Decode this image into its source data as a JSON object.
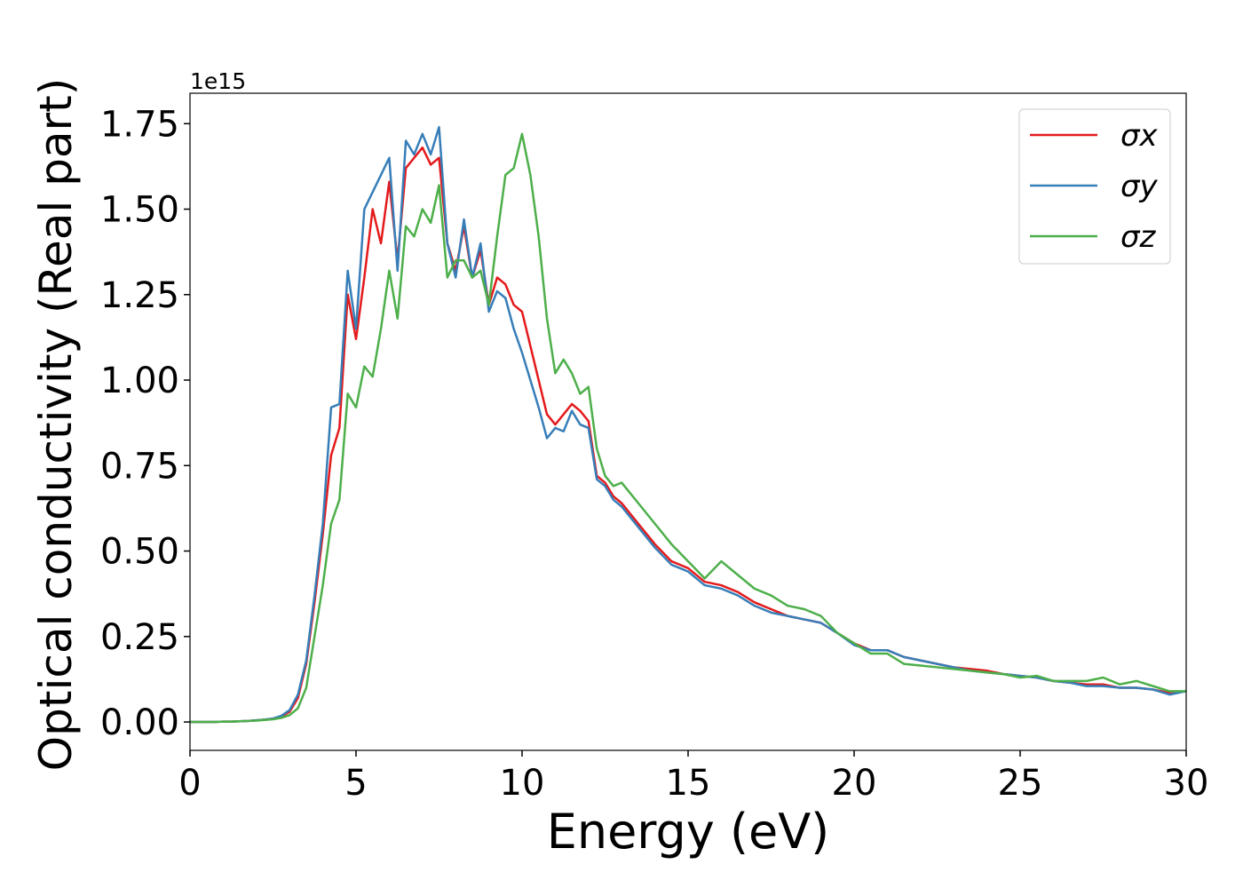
{
  "chart_data": {
    "type": "line",
    "offset_label": "1e15",
    "x_label": "Energy (eV)",
    "y_label": "Optical conductivity (Real part)",
    "xlim": [
      0,
      30
    ],
    "xticks": [
      0,
      5,
      10,
      15,
      20,
      25,
      30
    ],
    "ylim": [
      -0.083,
      1.839
    ],
    "yticks": [
      {
        "value": 0,
        "label": "0.00"
      },
      0.25,
      {
        "value": 0.5,
        "label": "0.50"
      },
      0.75,
      {
        "value": 1,
        "label": "1.00"
      },
      1.25,
      {
        "value": 1.5,
        "label": "1.50"
      },
      1.75
    ],
    "grid": false,
    "legend": "upper right",
    "x": [
      0,
      0.25,
      0.5,
      0.75,
      1,
      1.25,
      1.5,
      1.75,
      2,
      2.25,
      2.5,
      2.75,
      3,
      3.25,
      3.5,
      3.75,
      4,
      4.25,
      4.5,
      4.75,
      5,
      5.25,
      5.5,
      5.75,
      6,
      6.25,
      6.5,
      6.75,
      7,
      7.25,
      7.5,
      7.75,
      8,
      8.25,
      8.5,
      8.75,
      9,
      9.25,
      9.5,
      9.75,
      10,
      10.25,
      10.5,
      10.75,
      11,
      11.25,
      11.5,
      11.75,
      12,
      12.25,
      12.5,
      12.75,
      13,
      13.5,
      14,
      14.5,
      15,
      15.5,
      16,
      16.5,
      17,
      17.5,
      18,
      18.5,
      19,
      19.5,
      20,
      20.5,
      21,
      21.5,
      22,
      22.5,
      23,
      23.5,
      24,
      24.5,
      25,
      25.5,
      26,
      26.5,
      27,
      27.5,
      28,
      28.5,
      29,
      29.5,
      30
    ],
    "series": [
      {
        "name": "σx",
        "color": "#e41a1c",
        "values": [
          0,
          0,
          0,
          0,
          0.001,
          0.001,
          0.002,
          0.003,
          0.005,
          0.007,
          0.01,
          0.016,
          0.03,
          0.07,
          0.17,
          0.35,
          0.55,
          0.78,
          0.86,
          1.25,
          1.12,
          1.3,
          1.5,
          1.4,
          1.58,
          1.35,
          1.62,
          1.65,
          1.68,
          1.63,
          1.65,
          1.4,
          1.32,
          1.45,
          1.3,
          1.38,
          1.22,
          1.3,
          1.28,
          1.22,
          1.2,
          1.1,
          1.0,
          0.9,
          0.87,
          0.9,
          0.93,
          0.91,
          0.88,
          0.72,
          0.7,
          0.66,
          0.64,
          0.58,
          0.52,
          0.47,
          0.45,
          0.41,
          0.4,
          0.38,
          0.35,
          0.33,
          0.31,
          0.3,
          0.29,
          0.26,
          0.23,
          0.21,
          0.21,
          0.19,
          0.18,
          0.17,
          0.16,
          0.155,
          0.15,
          0.14,
          0.135,
          0.13,
          0.12,
          0.115,
          0.11,
          0.11,
          0.1,
          0.1,
          0.095,
          0.085,
          0.09
        ]
      },
      {
        "name": "σy",
        "color": "#377eb8",
        "values": [
          0,
          0,
          0,
          0,
          0.001,
          0.001,
          0.002,
          0.003,
          0.005,
          0.007,
          0.01,
          0.018,
          0.035,
          0.08,
          0.18,
          0.37,
          0.58,
          0.92,
          0.93,
          1.32,
          1.15,
          1.5,
          1.55,
          1.6,
          1.65,
          1.32,
          1.7,
          1.66,
          1.72,
          1.66,
          1.74,
          1.4,
          1.3,
          1.47,
          1.3,
          1.4,
          1.2,
          1.26,
          1.24,
          1.15,
          1.08,
          1.0,
          0.92,
          0.83,
          0.86,
          0.85,
          0.91,
          0.87,
          0.86,
          0.71,
          0.69,
          0.65,
          0.63,
          0.57,
          0.51,
          0.46,
          0.44,
          0.4,
          0.39,
          0.37,
          0.34,
          0.32,
          0.31,
          0.3,
          0.29,
          0.26,
          0.225,
          0.21,
          0.21,
          0.19,
          0.18,
          0.17,
          0.16,
          0.15,
          0.145,
          0.14,
          0.135,
          0.13,
          0.12,
          0.115,
          0.105,
          0.105,
          0.1,
          0.1,
          0.095,
          0.08,
          0.09
        ]
      },
      {
        "name": "σz",
        "color": "#4daf4a",
        "values": [
          0,
          0,
          0,
          0,
          0.001,
          0.001,
          0.002,
          0.003,
          0.004,
          0.006,
          0.008,
          0.012,
          0.02,
          0.04,
          0.1,
          0.25,
          0.4,
          0.58,
          0.65,
          0.96,
          0.92,
          1.04,
          1.01,
          1.15,
          1.32,
          1.18,
          1.45,
          1.42,
          1.5,
          1.46,
          1.57,
          1.3,
          1.35,
          1.35,
          1.3,
          1.32,
          1.22,
          1.42,
          1.6,
          1.62,
          1.72,
          1.6,
          1.42,
          1.18,
          1.02,
          1.06,
          1.02,
          0.96,
          0.98,
          0.8,
          0.72,
          0.69,
          0.7,
          0.64,
          0.58,
          0.52,
          0.47,
          0.42,
          0.47,
          0.43,
          0.39,
          0.37,
          0.34,
          0.33,
          0.31,
          0.26,
          0.23,
          0.2,
          0.2,
          0.17,
          0.165,
          0.16,
          0.155,
          0.15,
          0.145,
          0.14,
          0.13,
          0.135,
          0.12,
          0.12,
          0.12,
          0.13,
          0.11,
          0.12,
          0.105,
          0.09,
          0.09
        ]
      }
    ]
  }
}
